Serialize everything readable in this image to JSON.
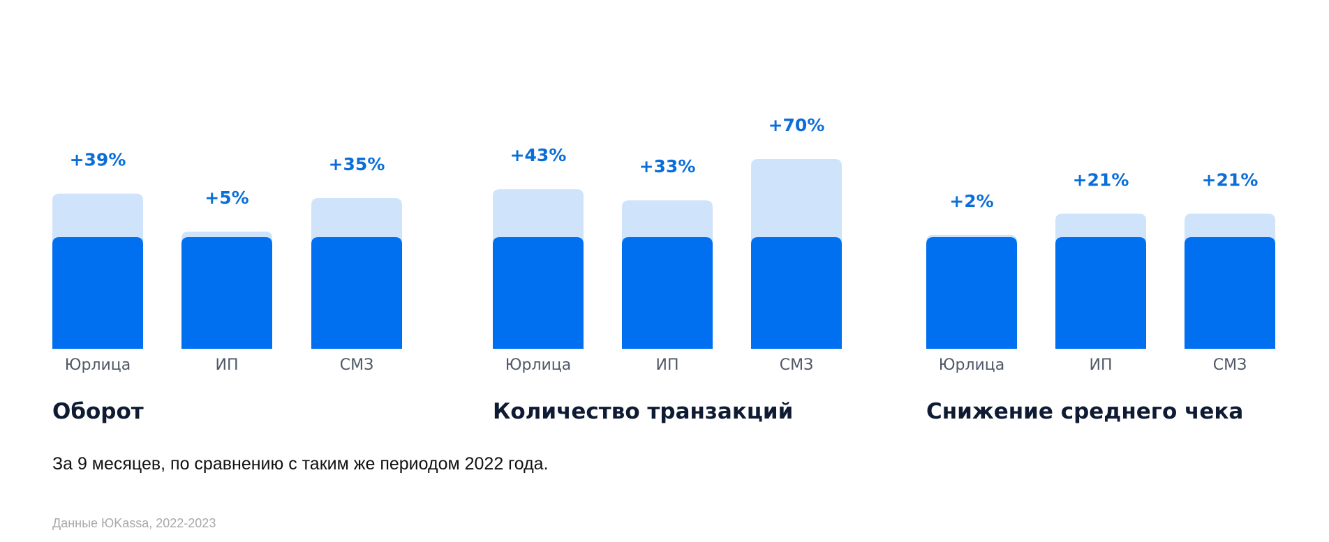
{
  "chart_data": [
    {
      "type": "bar",
      "title": "Оборот",
      "categories": [
        "Юрлица",
        "ИП",
        "СМЗ"
      ],
      "series": [
        {
          "values": [
            100,
            100,
            100
          ]
        },
        {
          "values": [
            139,
            105,
            135
          ]
        }
      ],
      "labels": [
        "+39%",
        "+5%",
        "+35%"
      ]
    },
    {
      "type": "bar",
      "title": "Количество транзакций",
      "categories": [
        "Юрлица",
        "ИП",
        "СМЗ"
      ],
      "series": [
        {
          "values": [
            100,
            100,
            100
          ]
        },
        {
          "values": [
            143,
            133,
            170
          ]
        }
      ],
      "labels": [
        "+43%",
        "+33%",
        "+70%"
      ]
    },
    {
      "type": "bar",
      "title": "Снижение среднего чека",
      "categories": [
        "Юрлица",
        "ИП",
        "СМЗ"
      ],
      "series": [
        {
          "values": [
            100,
            100,
            100
          ]
        },
        {
          "values": [
            102,
            121,
            121
          ]
        }
      ],
      "labels": [
        "+2%",
        "+21%",
        "+21%"
      ]
    }
  ],
  "footnote": "За 9 месяцев, по сравнению с таким же периодом 2022 года.",
  "source": "Данные ЮKassa, 2022-2023",
  "colors": {
    "base": "#0070f0",
    "increase": "#cfe3fb",
    "label": "#0a6ed8",
    "title": "#0e1b33",
    "category": "#4f5866",
    "footnote": "#111111",
    "source": "#a9a9a9"
  }
}
